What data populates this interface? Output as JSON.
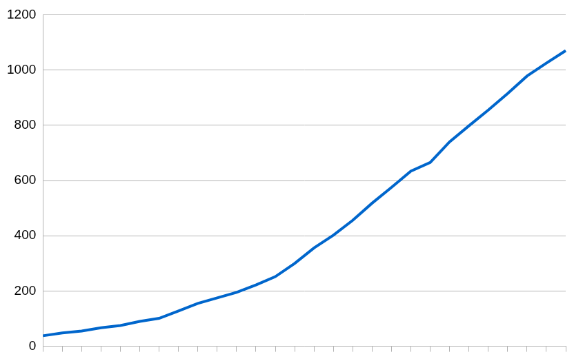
{
  "chart_data": {
    "type": "line",
    "categories": [
      null,
      null,
      null,
      null,
      null,
      null,
      null,
      null,
      null,
      null,
      null,
      null,
      null,
      null,
      null,
      null,
      null,
      null,
      null,
      null,
      null,
      null,
      null,
      null,
      null,
      null,
      null,
      null
    ],
    "values": [
      38,
      48,
      55,
      67,
      75,
      90,
      101,
      128,
      155,
      175,
      195,
      222,
      252,
      300,
      356,
      402,
      456,
      518,
      575,
      634,
      665,
      740,
      798,
      855,
      915,
      978,
      1025,
      1070
    ],
    "color": "#0066cc",
    "ylim": [
      0,
      1200
    ],
    "yticks": [
      0,
      200,
      400,
      600,
      800,
      1000,
      1200
    ],
    "grid": true,
    "tick_labels": "y"
  }
}
